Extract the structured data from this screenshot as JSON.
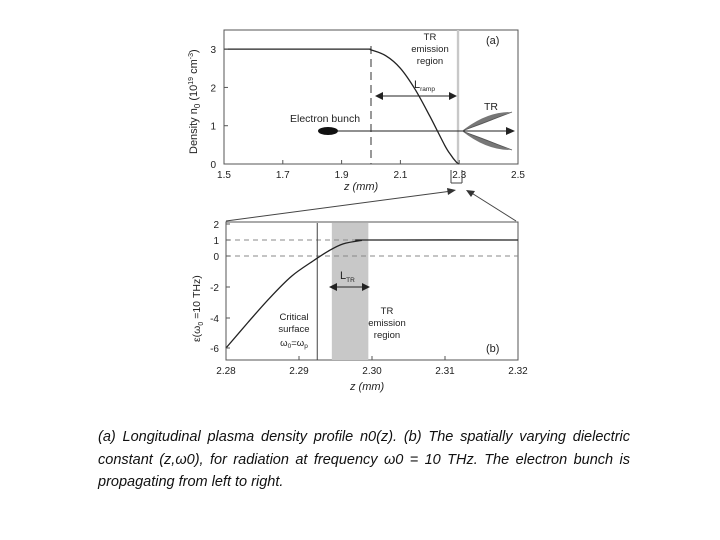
{
  "chart_data": [
    {
      "panel": "(a)",
      "type": "line",
      "xlabel": "z (mm)",
      "ylabel": "Density n₀ (10¹⁹ cm⁻³)",
      "xlim": [
        1.5,
        2.5
      ],
      "ylim": [
        0,
        3.5
      ],
      "xticks": [
        "1.5",
        "1.7",
        "1.9",
        "2.1",
        "2.3",
        "2.5"
      ],
      "yticks": [
        "0",
        "1",
        "2",
        "3"
      ],
      "series": [
        {
          "x": [
            1.5,
            1.8,
            1.98,
            2.0,
            2.05,
            2.1,
            2.15,
            2.2,
            2.25,
            2.27,
            2.29,
            2.3
          ],
          "y": [
            3,
            3,
            3,
            2.98,
            2.83,
            2.5,
            1.95,
            1.25,
            0.5,
            0.25,
            0.05,
            0
          ]
        }
      ],
      "annotations": {
        "emission_label": "TR\nemission\nregion",
        "length_label": "L",
        "length_sub": "ramp",
        "bunch_label": "Electron bunch",
        "tr_label": "TR"
      },
      "emission_region": [
        2.292,
        2.3
      ],
      "ramp_start": 2.0
    },
    {
      "panel": "(b)",
      "type": "line",
      "xlabel": "z (mm)",
      "ylabel": "ε(ω₀ =10 THz)",
      "xlim": [
        2.28,
        2.32
      ],
      "ylim": [
        -6.5,
        2
      ],
      "xticks": [
        "2.28",
        "2.29",
        "2.30",
        "2.31",
        "2.32"
      ],
      "yticks": [
        "2",
        "1",
        "0",
        "-2",
        "-4",
        "-6"
      ],
      "series": [
        {
          "x": [
            2.28,
            2.283,
            2.286,
            2.289,
            2.292,
            2.294,
            2.296,
            2.2985,
            2.2995,
            2.32
          ],
          "y": [
            -6,
            -4.3,
            -2.7,
            -1.3,
            -0.3,
            0.3,
            0.75,
            0.97,
            1,
            1
          ]
        }
      ],
      "annotations": {
        "length_label": "L",
        "length_sub": "TR",
        "emission_label": "TR\nemission\nregion",
        "critical_label": "Critical\nsurface\nω₀=ωₚ"
      },
      "emission_region": [
        2.2945,
        2.2995
      ],
      "critical_z": 2.2925
    }
  ],
  "caption": "(a) Longitudinal plasma density profile n0(z). (b) The spatially varying dielectric constant (z,ω0), for radiation at frequency ω0 = 10 THz. The electron bunch is propagating from left to right."
}
